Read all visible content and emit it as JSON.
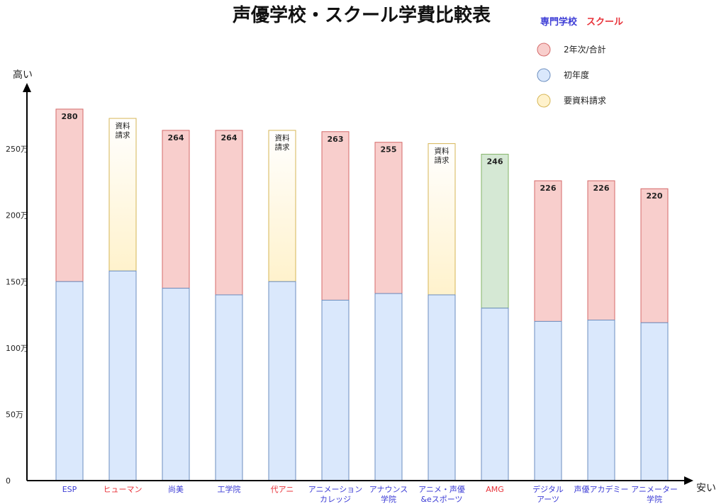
{
  "chart_data": {
    "type": "bar",
    "title": "声優学校・スクール学費比較表",
    "y_axis_top_label": "高い",
    "x_axis_end_label": "安い",
    "ylim": [
      0,
      300
    ],
    "y_ticks": [
      {
        "value": 0,
        "label": "0"
      },
      {
        "value": 50,
        "label": "50万"
      },
      {
        "value": 100,
        "label": "100万"
      },
      {
        "value": 150,
        "label": "150万"
      },
      {
        "value": 200,
        "label": "200万"
      },
      {
        "value": 250,
        "label": "250万"
      }
    ],
    "school_type_legend": [
      {
        "label": "専門学校",
        "color": "#3d3dd6"
      },
      {
        "label": "スクール",
        "color": "#e8333a"
      }
    ],
    "fill_legend": [
      {
        "label": "2年次/合計",
        "fill": "#f8cecc",
        "stroke": "#d46a6a"
      },
      {
        "label": "初年度",
        "fill": "#dae8fc",
        "stroke": "#6c8ebf"
      },
      {
        "label": "要資料請求",
        "fill": "#fff2cc",
        "stroke": "#d6b656"
      }
    ],
    "bars": [
      {
        "label": [
          "ESP"
        ],
        "type": "専門学校",
        "first_year": 150,
        "total": 280,
        "total_label": "280",
        "status": "total"
      },
      {
        "label": [
          "ヒューマン"
        ],
        "type": "スクール",
        "first_year": 158,
        "total": 273,
        "total_label": [
          "資料",
          "請求"
        ],
        "status": "request"
      },
      {
        "label": [
          "尚美"
        ],
        "type": "専門学校",
        "first_year": 145,
        "total": 264,
        "total_label": "264",
        "status": "total"
      },
      {
        "label": [
          "工学院"
        ],
        "type": "専門学校",
        "first_year": 140,
        "total": 264,
        "total_label": "264",
        "status": "total"
      },
      {
        "label": [
          "代アニ"
        ],
        "type": "スクール",
        "first_year": 150,
        "total": 264,
        "total_label": [
          "資料",
          "請求"
        ],
        "status": "request"
      },
      {
        "label": [
          "アニメーション",
          "カレッジ"
        ],
        "type": "専門学校",
        "first_year": 136,
        "total": 263,
        "total_label": "263",
        "status": "total"
      },
      {
        "label": [
          "アナウンス",
          "学院"
        ],
        "type": "専門学校",
        "first_year": 141,
        "total": 255,
        "total_label": "255",
        "status": "total"
      },
      {
        "label": [
          "アニメ・声優",
          "&eスポーツ"
        ],
        "type": "専門学校",
        "first_year": 140,
        "total": 254,
        "total_label": [
          "資料",
          "請求"
        ],
        "status": "request"
      },
      {
        "label": [
          "AMG"
        ],
        "type": "スクール",
        "first_year": 130,
        "total": 246,
        "total_label": "246",
        "status": "green",
        "fill": "#d5e8d4",
        "stroke": "#82b366"
      },
      {
        "label": [
          "デジタル",
          "アーツ"
        ],
        "type": "専門学校",
        "first_year": 120,
        "total": 226,
        "total_label": "226",
        "status": "total"
      },
      {
        "label": [
          "声優アカデミー"
        ],
        "type": "専門学校",
        "first_year": 121,
        "total": 226,
        "total_label": "226",
        "status": "total"
      },
      {
        "label": [
          "アニメーター",
          "学院"
        ],
        "type": "専門学校",
        "first_year": 119,
        "total": 220,
        "total_label": "220",
        "status": "total"
      }
    ]
  }
}
